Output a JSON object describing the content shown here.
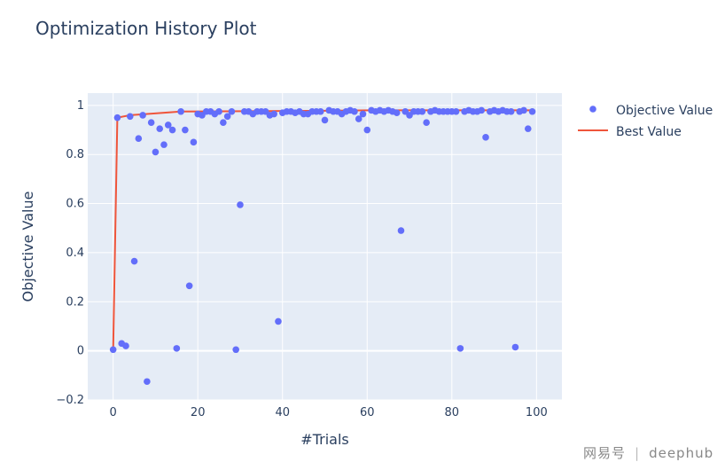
{
  "chart_data": {
    "type": "scatter",
    "title": "Optimization History Plot",
    "xlabel": "#Trials",
    "ylabel": "Objective Value",
    "xlim": [
      -6,
      106
    ],
    "ylim": [
      -0.2,
      1.05
    ],
    "xticks": [
      0,
      20,
      40,
      60,
      80,
      100
    ],
    "yticks": [
      -0.2,
      0,
      0.2,
      0.4,
      0.6,
      0.8,
      1
    ],
    "ytick_labels": [
      "−0.2",
      "0",
      "0.2",
      "0.4",
      "0.6",
      "0.8",
      "1"
    ],
    "grid": true,
    "legend_position": "top-right",
    "colors": {
      "objective": "#636efa",
      "best": "#ef553b",
      "plot_bg": "#e5ecf6",
      "text": "#2a3f5f"
    },
    "series": [
      {
        "name": "Objective Value",
        "kind": "markers",
        "x": [
          0,
          1,
          2,
          3,
          4,
          5,
          6,
          7,
          8,
          9,
          10,
          11,
          12,
          13,
          14,
          15,
          16,
          17,
          18,
          19,
          20,
          21,
          22,
          23,
          24,
          25,
          26,
          27,
          28,
          29,
          30,
          31,
          32,
          33,
          34,
          35,
          36,
          37,
          38,
          39,
          40,
          41,
          42,
          43,
          44,
          45,
          46,
          47,
          48,
          49,
          50,
          51,
          52,
          53,
          54,
          55,
          56,
          57,
          58,
          59,
          60,
          61,
          62,
          63,
          64,
          65,
          66,
          67,
          68,
          69,
          70,
          71,
          72,
          73,
          74,
          75,
          76,
          77,
          78,
          79,
          80,
          81,
          82,
          83,
          84,
          85,
          86,
          87,
          88,
          89,
          90,
          91,
          92,
          93,
          94,
          95,
          96,
          97,
          98,
          99
        ],
        "y": [
          0.005,
          0.95,
          0.03,
          0.02,
          0.955,
          0.365,
          0.865,
          0.96,
          -0.125,
          0.93,
          0.81,
          0.905,
          0.84,
          0.92,
          0.9,
          0.01,
          0.975,
          0.9,
          0.265,
          0.85,
          0.965,
          0.96,
          0.975,
          0.975,
          0.965,
          0.975,
          0.93,
          0.955,
          0.975,
          0.005,
          0.595,
          0.975,
          0.975,
          0.965,
          0.975,
          0.975,
          0.975,
          0.96,
          0.965,
          0.12,
          0.97,
          0.975,
          0.975,
          0.97,
          0.975,
          0.965,
          0.965,
          0.975,
          0.975,
          0.975,
          0.94,
          0.98,
          0.975,
          0.975,
          0.965,
          0.975,
          0.98,
          0.975,
          0.945,
          0.965,
          0.9,
          0.98,
          0.975,
          0.98,
          0.975,
          0.98,
          0.975,
          0.97,
          0.49,
          0.975,
          0.96,
          0.975,
          0.975,
          0.975,
          0.93,
          0.975,
          0.98,
          0.975,
          0.975,
          0.975,
          0.975,
          0.975,
          0.01,
          0.975,
          0.98,
          0.975,
          0.975,
          0.98,
          0.87,
          0.975,
          0.98,
          0.975,
          0.98,
          0.975,
          0.975,
          0.015,
          0.975,
          0.98,
          0.905,
          0.975
        ]
      },
      {
        "name": "Best Value",
        "kind": "line",
        "x": [
          0,
          1,
          4,
          16,
          51,
          61,
          99
        ],
        "y": [
          0.005,
          0.95,
          0.96,
          0.975,
          0.978,
          0.98,
          0.98
        ]
      }
    ]
  },
  "watermark": {
    "brand": "网易号",
    "separator": "|",
    "account": "deephub"
  }
}
